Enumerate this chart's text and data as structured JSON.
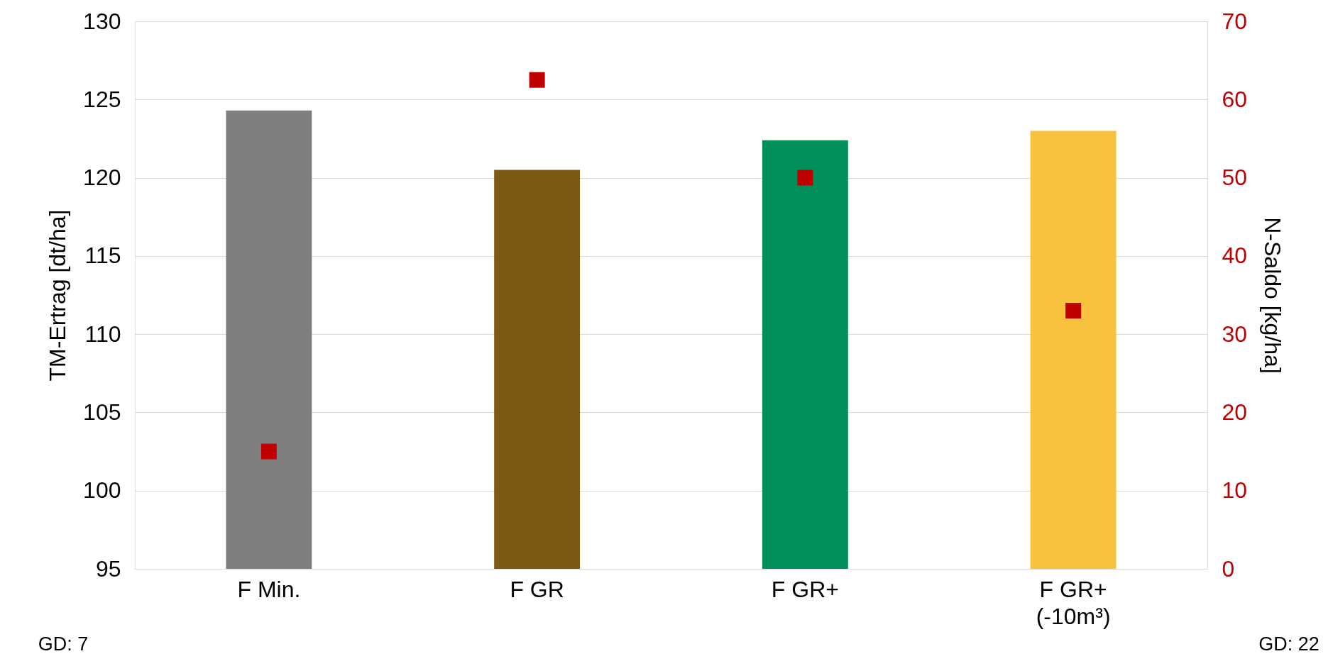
{
  "chart_data": {
    "type": "bar",
    "categories": [
      "F Min.",
      "F GR",
      "F GR+",
      "F GR+\n(-10m³)"
    ],
    "series": [
      {
        "values": [
          124.3,
          120.5,
          122.4,
          123.0
        ],
        "colors": [
          "#7f7f7f",
          "#7b5a14",
          "#008f5a",
          "#f8c23e"
        ]
      },
      {
        "type": "scatter",
        "axis": "y2",
        "marker": "square",
        "color": "#c00000",
        "values": [
          15,
          62.5,
          50,
          33
        ]
      }
    ],
    "ylabel": "TM-Ertrag [dt/ha]",
    "y2label": "N-Saldo [kg/ha]",
    "ylim": [
      95,
      130
    ],
    "yticks": [
      95,
      100,
      105,
      110,
      115,
      120,
      125,
      130
    ],
    "y2lim": [
      0,
      70
    ],
    "y2ticks": [
      0,
      10,
      20,
      30,
      40,
      50,
      60,
      70
    ],
    "grid": "y",
    "annotations": [
      "GD: 7",
      "GD: 22"
    ]
  }
}
